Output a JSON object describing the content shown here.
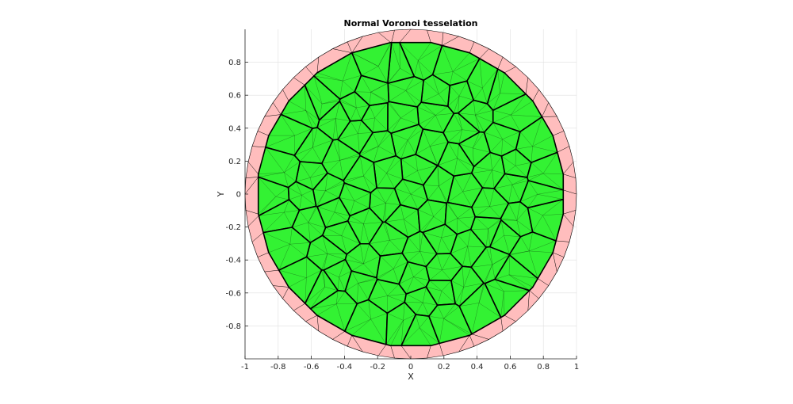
{
  "chart_data": {
    "type": "voronoi-tessellation",
    "title": "Normal Voronoi tesselation",
    "xlabel": "X",
    "ylabel": "Y",
    "xlim": [
      -1,
      1
    ],
    "ylim": [
      -1,
      1
    ],
    "xticks": [
      -1,
      -0.8,
      -0.6,
      -0.4,
      -0.2,
      0,
      0.2,
      0.4,
      0.6,
      0.8,
      1
    ],
    "xtick_labels": [
      "-1",
      "-0.8",
      "-0.6",
      "-0.4",
      "-0.2",
      "0",
      "0.2",
      "0.4",
      "0.6",
      "0.8",
      "1"
    ],
    "yticks": [
      -0.8,
      -0.6,
      -0.4,
      -0.2,
      0,
      0.2,
      0.4,
      0.6,
      0.8
    ],
    "ytick_labels": [
      "-0.8",
      "-0.6",
      "-0.4",
      "-0.2",
      "0",
      "0.2",
      "0.4",
      "0.6",
      "0.8"
    ],
    "grid": true,
    "domain": {
      "shape": "circle",
      "center": [
        0,
        0
      ],
      "radius": 1
    },
    "colors": {
      "cell_fill": "#33f233",
      "boundary_fill": "#ffbdbd",
      "cell_edge": "#000000",
      "mesh_edge": "#000000"
    },
    "seed_rings": [
      {
        "radius": 0.0,
        "count": 1,
        "phase": 0.0
      },
      {
        "radius": 0.17,
        "count": 6,
        "phase": 0.3
      },
      {
        "radius": 0.33,
        "count": 12,
        "phase": 0.1
      },
      {
        "radius": 0.49,
        "count": 18,
        "phase": 0.25
      },
      {
        "radius": 0.64,
        "count": 24,
        "phase": 0.05
      },
      {
        "radius": 0.79,
        "count": 30,
        "phase": 0.2
      }
    ],
    "boundary_points": 64
  }
}
